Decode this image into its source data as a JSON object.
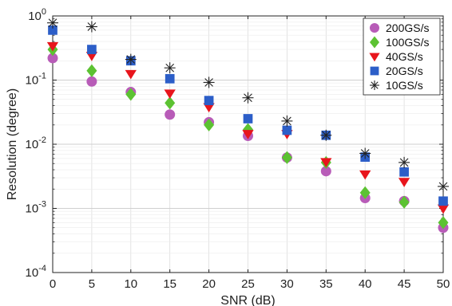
{
  "chart_data": {
    "type": "scatter",
    "title": "",
    "xlabel": "SNR (dB)",
    "ylabel": "Resolution (degree)",
    "xlim": [
      0,
      50
    ],
    "ylim": [
      0.0001,
      1
    ],
    "yscale": "log",
    "grid": true,
    "legend_position": "top-right",
    "x": [
      0,
      5,
      10,
      15,
      20,
      25,
      30,
      35,
      40,
      45,
      50
    ],
    "x_tick_labels": [
      "0",
      "5",
      "10",
      "15",
      "20",
      "25",
      "30",
      "35",
      "40",
      "45",
      "50"
    ],
    "y_tick_values": [
      0.0001,
      0.001,
      0.01,
      0.1,
      1
    ],
    "y_tick_labels": [
      {
        "base": "10",
        "exp": "-4"
      },
      {
        "base": "10",
        "exp": "-3"
      },
      {
        "base": "10",
        "exp": "-2"
      },
      {
        "base": "10",
        "exp": "-1"
      },
      {
        "base": "10",
        "exp": "0"
      }
    ],
    "series": [
      {
        "name": "200GS/s",
        "marker": "circle",
        "color": "#b85cb8",
        "values": [
          0.22,
          0.095,
          0.065,
          0.029,
          0.022,
          0.0135,
          0.0062,
          0.0038,
          0.00145,
          0.0013,
          0.0005
        ]
      },
      {
        "name": "100GS/s",
        "marker": "diamond",
        "color": "#5cc232",
        "values": [
          0.3,
          0.14,
          0.06,
          0.044,
          0.02,
          0.017,
          0.0062,
          0.0052,
          0.00175,
          0.00125,
          0.0006
        ]
      },
      {
        "name": "40GS/s",
        "marker": "triangle-down",
        "color": "#e8151c",
        "values": [
          0.34,
          0.24,
          0.125,
          0.062,
          0.038,
          0.0145,
          0.0145,
          0.0053,
          0.0034,
          0.0026,
          0.001
        ]
      },
      {
        "name": "20GS/s",
        "marker": "square",
        "color": "#2c5ec8",
        "values": [
          0.6,
          0.3,
          0.2,
          0.105,
          0.048,
          0.025,
          0.0165,
          0.0138,
          0.0063,
          0.0037,
          0.0013
        ]
      },
      {
        "name": "10GS/s",
        "marker": "asterisk",
        "color": "#222222",
        "values": [
          0.78,
          0.68,
          0.21,
          0.155,
          0.092,
          0.053,
          0.023,
          0.0138,
          0.0072,
          0.0052,
          0.0022
        ]
      }
    ]
  }
}
